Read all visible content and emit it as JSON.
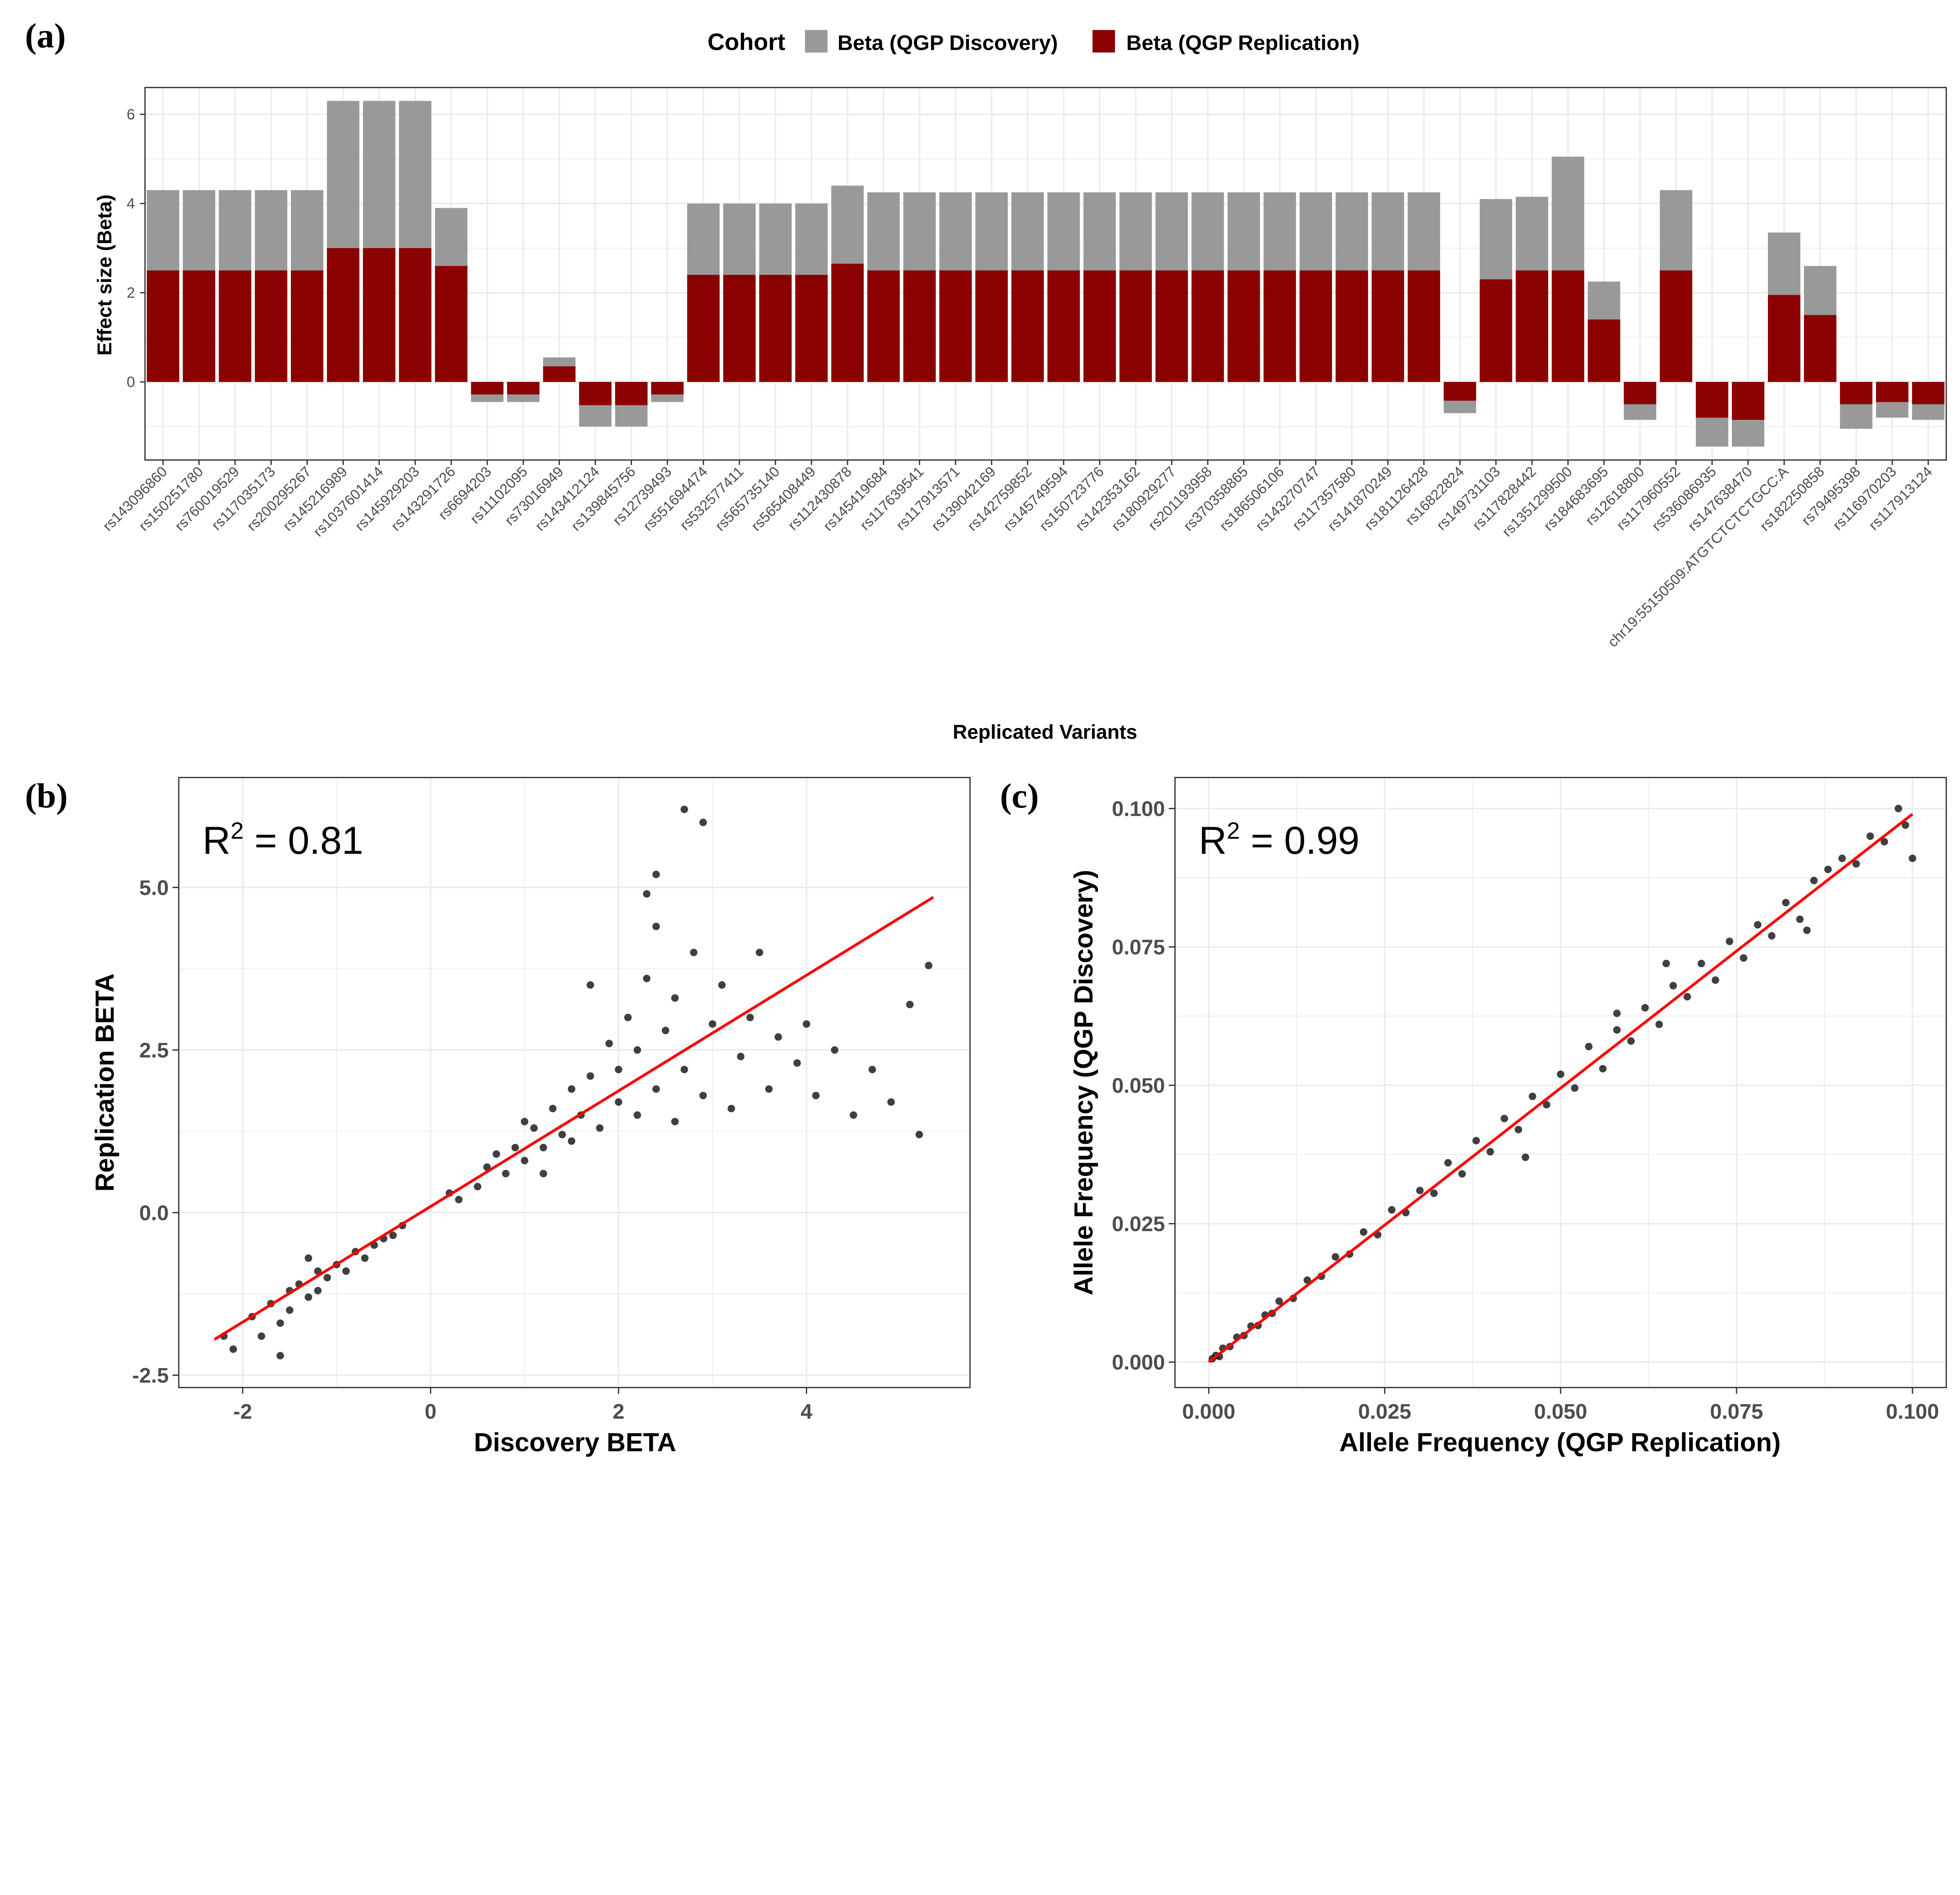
{
  "panel_labels": {
    "a": "(a)",
    "b": "(b)",
    "c": "(c)"
  },
  "colors": {
    "discovery": "#999999",
    "replication": "#8b0000",
    "regression": "#ff0000",
    "points": "#000000",
    "grid": "#ebebeb"
  },
  "chart_data": [
    {
      "type": "bar",
      "title": "",
      "xlabel": "Replicated Variants",
      "ylabel": "Effect size (Beta)",
      "ylim": [
        -1.75,
        6.6
      ],
      "yticks": [
        0,
        2,
        4,
        6
      ],
      "legend": {
        "title": "Cohort",
        "position": "top",
        "entries": [
          "Beta (QGP Discovery)",
          "Beta (QGP Replication)"
        ]
      },
      "categories": [
        "rs143096860",
        "rs150251780",
        "rs760019529",
        "rs117035173",
        "rs200295267",
        "rs145216989",
        "rs1037601414",
        "rs145929203",
        "rs143291726",
        "rs6694203",
        "rs11102095",
        "rs73016949",
        "rs143412124",
        "rs139845756",
        "rs12739493",
        "rs551694474",
        "rs532577411",
        "rs565735140",
        "rs565408449",
        "rs112430878",
        "rs145419684",
        "rs117639541",
        "rs117913571",
        "rs139042169",
        "rs142759852",
        "rs145749594",
        "rs150723776",
        "rs142353162",
        "rs180929277",
        "rs201193958",
        "rs370358865",
        "rs186506106",
        "rs143270747",
        "rs117357580",
        "rs141870249",
        "rs181126428",
        "rs16822824",
        "rs149731103",
        "rs117828442",
        "rs1351299500",
        "rs184683695",
        "rs12618800",
        "rs117960552",
        "rs536086935",
        "rs147638470",
        "chr19:55150509:ATGTCTCTCTGCC:A",
        "rs182250858",
        "rs79495398",
        "rs116970203",
        "rs117913124"
      ],
      "series": [
        {
          "name": "Beta (QGP Discovery)",
          "values": [
            4.3,
            4.3,
            4.3,
            4.3,
            4.3,
            6.3,
            6.3,
            6.3,
            3.9,
            -0.45,
            -0.45,
            0.55,
            -1.0,
            -1.0,
            -0.45,
            4.0,
            4.0,
            4.0,
            4.0,
            4.4,
            4.25,
            4.25,
            4.25,
            4.25,
            4.25,
            4.25,
            4.25,
            4.25,
            4.25,
            4.25,
            4.25,
            4.25,
            4.25,
            4.25,
            4.25,
            4.25,
            -0.7,
            4.1,
            4.15,
            5.05,
            2.25,
            -0.85,
            4.3,
            -1.45,
            -1.45,
            3.35,
            2.6,
            -1.05,
            -0.8,
            -0.85
          ]
        },
        {
          "name": "Beta (QGP Replication)",
          "values": [
            2.5,
            2.5,
            2.5,
            2.5,
            2.5,
            3.0,
            3.0,
            3.0,
            2.6,
            -0.28,
            -0.28,
            0.35,
            -0.52,
            -0.52,
            -0.28,
            2.4,
            2.4,
            2.4,
            2.4,
            2.65,
            2.5,
            2.5,
            2.5,
            2.5,
            2.5,
            2.5,
            2.5,
            2.5,
            2.5,
            2.5,
            2.5,
            2.5,
            2.5,
            2.5,
            2.5,
            2.5,
            -0.42,
            2.3,
            2.5,
            2.5,
            1.4,
            -0.5,
            2.5,
            -0.8,
            -0.85,
            1.95,
            1.5,
            -0.5,
            -0.45,
            -0.5
          ]
        }
      ]
    },
    {
      "type": "scatter",
      "xlabel": "Discovery BETA",
      "ylabel": "Replication BETA",
      "xlim": [
        -2.68,
        5.74
      ],
      "ylim": [
        -2.69,
        6.69
      ],
      "xticks": [
        {
          "v": -2,
          "label": "-2"
        },
        {
          "v": 0,
          "label": "0"
        },
        {
          "v": 2,
          "label": "2"
        },
        {
          "v": 4,
          "label": "4"
        }
      ],
      "yticks": [
        {
          "v": -2.5,
          "label": "-2.5"
        },
        {
          "v": 0,
          "label": "0.0"
        },
        {
          "v": 2.5,
          "label": "2.5"
        },
        {
          "v": 5,
          "label": "5.0"
        }
      ],
      "annotation": {
        "prefix": "R",
        "sup": "2",
        "text": " = 0.81"
      },
      "regression": {
        "x": [
          -2.3,
          5.35
        ],
        "y": [
          -1.95,
          4.85
        ]
      },
      "points": [
        [
          -2.2,
          -1.9
        ],
        [
          -2.1,
          -2.1
        ],
        [
          -1.9,
          -1.6
        ],
        [
          -1.8,
          -1.9
        ],
        [
          -1.7,
          -1.4
        ],
        [
          -1.6,
          -1.7
        ],
        [
          -1.5,
          -1.2
        ],
        [
          -1.5,
          -1.5
        ],
        [
          -1.4,
          -1.1
        ],
        [
          -1.3,
          -1.3
        ],
        [
          -1.2,
          -0.9
        ],
        [
          -1.2,
          -1.2
        ],
        [
          -1.1,
          -1.0
        ],
        [
          -1.0,
          -0.8
        ],
        [
          -0.9,
          -0.9
        ],
        [
          -0.8,
          -0.6
        ],
        [
          -0.7,
          -0.7
        ],
        [
          -0.6,
          -0.5
        ],
        [
          -0.5,
          -0.4
        ],
        [
          -0.4,
          -0.35
        ],
        [
          -0.3,
          -0.2
        ],
        [
          -1.6,
          -2.2
        ],
        [
          -1.3,
          -0.7
        ],
        [
          0.2,
          0.3
        ],
        [
          0.3,
          0.2
        ],
        [
          0.5,
          0.4
        ],
        [
          0.6,
          0.7
        ],
        [
          0.8,
          0.6
        ],
        [
          0.9,
          1.0
        ],
        [
          1.0,
          0.8
        ],
        [
          1.1,
          1.3
        ],
        [
          1.2,
          1.0
        ],
        [
          1.3,
          1.6
        ],
        [
          1.4,
          1.2
        ],
        [
          1.5,
          1.9
        ],
        [
          1.5,
          1.1
        ],
        [
          1.6,
          1.5
        ],
        [
          1.7,
          2.1
        ],
        [
          1.8,
          1.3
        ],
        [
          1.9,
          2.6
        ],
        [
          2.0,
          1.7
        ],
        [
          2.0,
          2.2
        ],
        [
          2.1,
          3.0
        ],
        [
          2.2,
          1.5
        ],
        [
          2.2,
          2.5
        ],
        [
          2.3,
          3.6
        ],
        [
          2.4,
          1.9
        ],
        [
          2.4,
          4.4
        ],
        [
          2.5,
          2.8
        ],
        [
          2.6,
          1.4
        ],
        [
          2.6,
          3.3
        ],
        [
          2.7,
          2.2
        ],
        [
          2.8,
          4.0
        ],
        [
          2.9,
          1.8
        ],
        [
          3.0,
          2.9
        ],
        [
          3.1,
          3.5
        ],
        [
          3.2,
          1.6
        ],
        [
          3.3,
          2.4
        ],
        [
          3.4,
          3.0
        ],
        [
          3.6,
          1.9
        ],
        [
          3.7,
          2.7
        ],
        [
          3.9,
          2.3
        ],
        [
          4.1,
          1.8
        ],
        [
          4.3,
          2.5
        ],
        [
          4.5,
          1.5
        ],
        [
          4.7,
          2.2
        ],
        [
          4.9,
          1.7
        ],
        [
          5.1,
          3.2
        ],
        [
          5.2,
          1.2
        ],
        [
          5.3,
          3.8
        ],
        [
          2.4,
          5.2
        ],
        [
          2.7,
          6.2
        ],
        [
          2.9,
          6.0
        ],
        [
          2.3,
          4.9
        ],
        [
          1.7,
          3.5
        ],
        [
          3.5,
          4.0
        ],
        [
          4.0,
          2.9
        ],
        [
          1.2,
          0.6
        ],
        [
          1.0,
          1.4
        ],
        [
          0.7,
          0.9
        ]
      ]
    },
    {
      "type": "scatter",
      "xlabel": "Allele Frequency (QGP Replication)",
      "ylabel": "Allele Frequency (QGP Discovery)",
      "xlim": [
        -0.0048,
        0.1048
      ],
      "ylim": [
        -0.0046,
        0.1056
      ],
      "xticks": [
        {
          "v": 0,
          "label": "0.000"
        },
        {
          "v": 0.025,
          "label": "0.025"
        },
        {
          "v": 0.05,
          "label": "0.050"
        },
        {
          "v": 0.075,
          "label": "0.075"
        },
        {
          "v": 0.1,
          "label": "0.100"
        }
      ],
      "yticks": [
        {
          "v": 0,
          "label": "0.000"
        },
        {
          "v": 0.025,
          "label": "0.025"
        },
        {
          "v": 0.05,
          "label": "0.050"
        },
        {
          "v": 0.075,
          "label": "0.075"
        },
        {
          "v": 0.1,
          "label": "0.100"
        }
      ],
      "annotation": {
        "prefix": "R",
        "sup": "2",
        "text": " = 0.99"
      },
      "regression": {
        "x": [
          0,
          0.1
        ],
        "y": [
          0,
          0.099
        ]
      },
      "points": [
        [
          0.0005,
          0.0006
        ],
        [
          0.001,
          0.0012
        ],
        [
          0.0015,
          0.001
        ],
        [
          0.002,
          0.0025
        ],
        [
          0.003,
          0.0028
        ],
        [
          0.004,
          0.0045
        ],
        [
          0.005,
          0.0048
        ],
        [
          0.006,
          0.0065
        ],
        [
          0.007,
          0.0066
        ],
        [
          0.008,
          0.0085
        ],
        [
          0.009,
          0.0088
        ],
        [
          0.01,
          0.011
        ],
        [
          0.012,
          0.0115
        ],
        [
          0.014,
          0.0148
        ],
        [
          0.016,
          0.0155
        ],
        [
          0.018,
          0.019
        ],
        [
          0.02,
          0.0195
        ],
        [
          0.022,
          0.0235
        ],
        [
          0.024,
          0.023
        ],
        [
          0.026,
          0.0275
        ],
        [
          0.028,
          0.027
        ],
        [
          0.03,
          0.031
        ],
        [
          0.032,
          0.0305
        ],
        [
          0.034,
          0.036
        ],
        [
          0.036,
          0.034
        ],
        [
          0.038,
          0.04
        ],
        [
          0.04,
          0.038
        ],
        [
          0.042,
          0.044
        ],
        [
          0.044,
          0.042
        ],
        [
          0.046,
          0.048
        ],
        [
          0.048,
          0.0465
        ],
        [
          0.05,
          0.052
        ],
        [
          0.052,
          0.0495
        ],
        [
          0.054,
          0.057
        ],
        [
          0.056,
          0.053
        ],
        [
          0.058,
          0.06
        ],
        [
          0.06,
          0.058
        ],
        [
          0.062,
          0.064
        ],
        [
          0.064,
          0.061
        ],
        [
          0.066,
          0.068
        ],
        [
          0.068,
          0.066
        ],
        [
          0.07,
          0.072
        ],
        [
          0.072,
          0.069
        ],
        [
          0.074,
          0.076
        ],
        [
          0.076,
          0.073
        ],
        [
          0.078,
          0.079
        ],
        [
          0.08,
          0.077
        ],
        [
          0.082,
          0.083
        ],
        [
          0.084,
          0.08
        ],
        [
          0.086,
          0.087
        ],
        [
          0.088,
          0.089
        ],
        [
          0.09,
          0.091
        ],
        [
          0.092,
          0.09
        ],
        [
          0.094,
          0.095
        ],
        [
          0.096,
          0.094
        ],
        [
          0.098,
          0.1
        ],
        [
          0.099,
          0.097
        ],
        [
          0.1,
          0.091
        ],
        [
          0.085,
          0.078
        ],
        [
          0.065,
          0.072
        ],
        [
          0.045,
          0.037
        ],
        [
          0.058,
          0.063
        ]
      ]
    }
  ]
}
